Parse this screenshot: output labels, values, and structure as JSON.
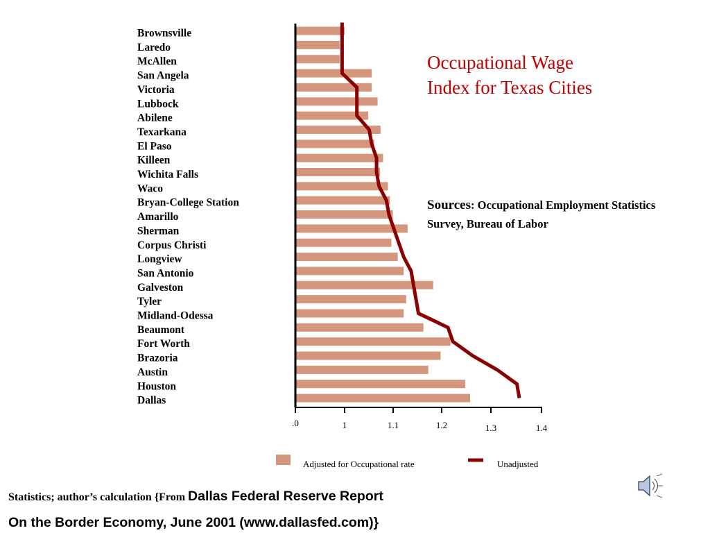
{
  "title": "Occupational Wage\nIndex for Texas Cities",
  "sources": {
    "lead": "Sources",
    "text": ": Occupational Employment Statistics Survey, Bureau of Labor"
  },
  "footer": {
    "line1_part1": "Statistics; author’s calculation  {From ",
    "line1_part2": "Dallas Federal Reserve Report",
    "line2": "On the Border Economy, June 2001 (www.dallasfed.com)}"
  },
  "icons": {
    "speaker": "speaker-icon"
  },
  "colors": {
    "bar": "#d4967c",
    "line": "#8b0000",
    "title": "#c00000"
  },
  "chart_data": {
    "type": "bar",
    "orientation": "horizontal",
    "categories": [
      "Brownsville",
      "Laredo",
      "McAllen",
      "San Angela",
      "Victoria",
      "Lubbock",
      "Abilene",
      "Texarkana",
      "El Paso",
      "Killeen",
      "Wichita Falls",
      "Waco",
      "Bryan-College Station",
      "Amarillo",
      "Sherman",
      "Corpus Christi",
      "Longview",
      "San Antonio",
      "Galveston",
      "Tyler",
      "Midland-Odessa",
      "Beaumont",
      "Fort Worth",
      "Brazoria",
      "Austin",
      "Houston",
      "Dallas"
    ],
    "series": [
      {
        "name": "Adjusted for Occupational rate",
        "kind": "bar",
        "values": [
          1.0,
          0.99,
          0.99,
          1.055,
          1.055,
          1.067,
          1.048,
          1.073,
          1.06,
          1.078,
          1.072,
          1.088,
          1.092,
          1.098,
          1.128,
          1.095,
          1.108,
          1.12,
          1.18,
          1.125,
          1.12,
          1.16,
          1.215,
          1.195,
          1.17,
          1.245,
          1.255
        ]
      },
      {
        "name": "Unadjusted",
        "kind": "line",
        "values": [
          0.995,
          0.995,
          0.995,
          0.995,
          1.025,
          1.025,
          1.025,
          1.05,
          1.055,
          1.065,
          1.065,
          1.07,
          1.085,
          1.09,
          1.1,
          1.11,
          1.12,
          1.135,
          1.14,
          1.145,
          1.15,
          1.21,
          1.22,
          1.26,
          1.31,
          1.35,
          1.355
        ]
      }
    ],
    "x_ticks": [
      ".0",
      "1",
      "1.1",
      "1.2",
      "1.3",
      "1.4"
    ],
    "xlim": [
      0.9,
      1.4
    ],
    "legend": [
      "Adjusted for Occupational rate",
      "Unadjusted"
    ],
    "legend_position": "bottom"
  }
}
